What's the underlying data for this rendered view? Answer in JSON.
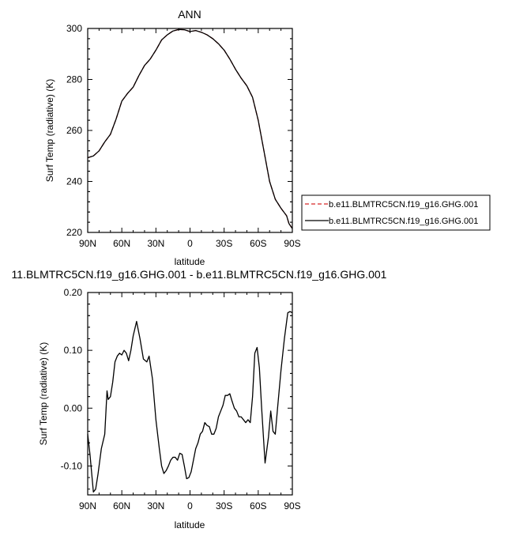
{
  "chart_data": [
    {
      "type": "line",
      "title": "ANN",
      "xlabel": "latitude",
      "ylabel": "Surf Temp (radiative) (K)",
      "xlim": [
        90,
        -90
      ],
      "ylim": [
        220,
        300
      ],
      "xticks": [
        90,
        60,
        30,
        0,
        -30,
        -60,
        -90
      ],
      "xtick_labels": [
        "90N",
        "60N",
        "30N",
        "0",
        "30S",
        "60S",
        "90S"
      ],
      "yticks": [
        220,
        240,
        260,
        280,
        300
      ],
      "ytick_labels": [
        "220",
        "240",
        "260",
        "280",
        "300"
      ],
      "grid": false,
      "legend_position": "right",
      "series": [
        {
          "name": "b.e11.BLMTRC5CN.f19_g16.GHG.001",
          "color": "#d62728",
          "style": "dashed",
          "x": [
            90,
            85,
            80,
            75,
            70,
            65,
            60,
            55,
            50,
            45,
            40,
            35,
            30,
            25,
            20,
            15,
            10,
            5,
            0,
            -5,
            -10,
            -15,
            -20,
            -25,
            -30,
            -35,
            -40,
            -45,
            -50,
            -55,
            -60,
            -65,
            -70,
            -75,
            -80,
            -85,
            -87,
            -90
          ],
          "y": [
            249.3,
            250.0,
            252.0,
            255.5,
            258.5,
            264.5,
            271.5,
            274.5,
            277.0,
            281.5,
            285.5,
            288.0,
            291.5,
            295.5,
            297.5,
            299.0,
            299.6,
            299.5,
            298.8,
            299.2,
            298.5,
            297.5,
            296.0,
            294.0,
            291.5,
            288.0,
            284.0,
            280.5,
            277.5,
            273.0,
            264.0,
            252.0,
            240.0,
            233.0,
            229.5,
            226.5,
            223.5,
            221.5
          ]
        },
        {
          "name": "b.e11.BLMTRC5CN.f19_g16.GHG.001",
          "color": "#000000",
          "style": "solid",
          "x": [
            90,
            85,
            80,
            75,
            70,
            65,
            60,
            55,
            50,
            45,
            40,
            35,
            30,
            25,
            20,
            15,
            10,
            5,
            0,
            -5,
            -10,
            -15,
            -20,
            -25,
            -30,
            -35,
            -40,
            -45,
            -50,
            -55,
            -60,
            -65,
            -70,
            -75,
            -80,
            -85,
            -87,
            -90
          ],
          "y": [
            249.3,
            250.0,
            252.0,
            255.5,
            258.5,
            264.5,
            271.5,
            274.5,
            277.0,
            281.5,
            285.5,
            288.0,
            291.5,
            295.5,
            297.5,
            299.0,
            299.6,
            299.5,
            298.8,
            299.2,
            298.5,
            297.5,
            296.0,
            294.0,
            291.5,
            288.0,
            284.0,
            280.5,
            277.5,
            273.0,
            264.0,
            252.0,
            240.0,
            233.0,
            229.5,
            226.5,
            223.5,
            221.5
          ]
        }
      ]
    },
    {
      "type": "line",
      "title": "11.BLMTRC5CN.f19_g16.GHG.001 - b.e11.BLMTRC5CN.f19_g16.GHG.001",
      "xlabel": "latitude",
      "ylabel": "Surf Temp (radiative) (K)",
      "xlim": [
        90,
        -90
      ],
      "ylim": [
        -0.15,
        0.2
      ],
      "xticks": [
        90,
        60,
        30,
        0,
        -30,
        -60,
        -90
      ],
      "xtick_labels": [
        "90N",
        "60N",
        "30N",
        "0",
        "30S",
        "60S",
        "90S"
      ],
      "yticks": [
        -0.1,
        0.0,
        0.1,
        0.2
      ],
      "ytick_labels": [
        "-0.10",
        "0.00",
        "0.10",
        "0.20"
      ],
      "grid": false,
      "series": [
        {
          "color": "#000000",
          "style": "solid",
          "x": [
            90,
            88,
            85,
            83,
            81,
            78,
            75,
            73,
            72,
            70,
            68,
            66,
            64,
            62,
            60,
            58,
            56,
            54,
            52,
            50,
            47,
            44,
            41,
            38,
            36,
            33,
            30,
            27,
            25,
            23,
            21,
            19,
            17,
            15,
            13,
            11,
            9,
            7,
            5,
            3,
            1,
            -1,
            -3,
            -5,
            -7,
            -9,
            -11,
            -13,
            -15,
            -17,
            -19,
            -21,
            -23,
            -25,
            -27,
            -29,
            -31,
            -33,
            -35,
            -37,
            -39,
            -41,
            -43,
            -45,
            -47,
            -49,
            -51,
            -53,
            -55,
            -57,
            -59,
            -61,
            -63,
            -66,
            -69,
            -71,
            -73,
            -75,
            -77,
            -80,
            -83,
            -86,
            -88,
            -90
          ],
          "y": [
            -0.045,
            -0.08,
            -0.145,
            -0.14,
            -0.115,
            -0.07,
            -0.045,
            0.03,
            0.015,
            0.02,
            0.045,
            0.08,
            0.09,
            0.095,
            0.092,
            0.1,
            0.095,
            0.082,
            0.1,
            0.125,
            0.15,
            0.12,
            0.085,
            0.08,
            0.09,
            0.05,
            -0.02,
            -0.07,
            -0.1,
            -0.113,
            -0.108,
            -0.1,
            -0.09,
            -0.085,
            -0.085,
            -0.09,
            -0.078,
            -0.08,
            -0.1,
            -0.122,
            -0.12,
            -0.11,
            -0.09,
            -0.07,
            -0.06,
            -0.045,
            -0.04,
            -0.025,
            -0.03,
            -0.032,
            -0.045,
            -0.045,
            -0.035,
            -0.015,
            -0.005,
            0.005,
            0.022,
            0.022,
            0.025,
            0.012,
            0.0,
            -0.005,
            -0.015,
            -0.015,
            -0.02,
            -0.025,
            -0.02,
            -0.025,
            0.02,
            0.095,
            0.105,
            0.07,
            0.0,
            -0.095,
            -0.05,
            -0.005,
            -0.04,
            -0.045,
            0.0,
            0.065,
            0.12,
            0.165,
            0.167,
            0.165
          ]
        }
      ]
    }
  ]
}
